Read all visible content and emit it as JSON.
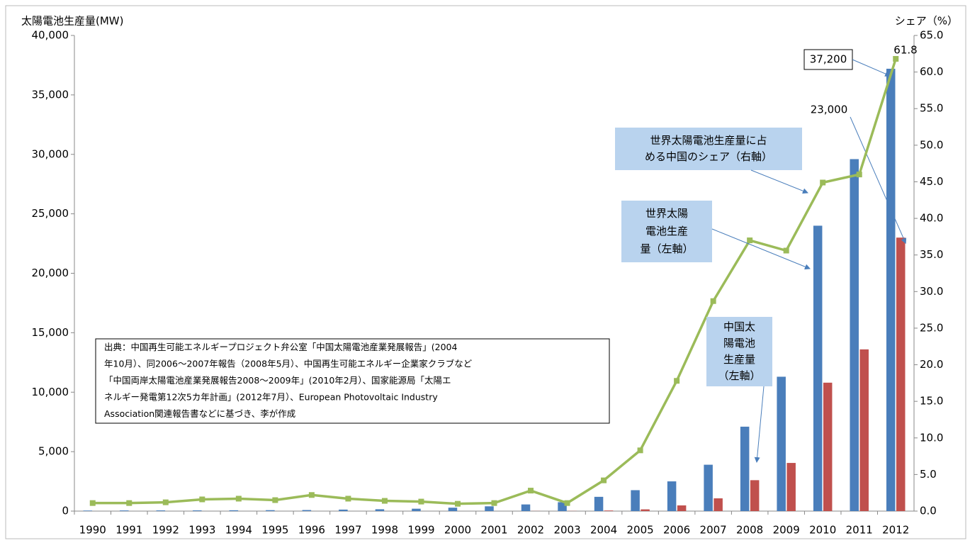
{
  "chart_data": {
    "type": "bar-line",
    "y_label": "太陽電池生産量(MW)",
    "y2_label": "シェア（%）",
    "categories": [
      "1990",
      "1991",
      "1992",
      "1993",
      "1994",
      "1995",
      "1996",
      "1997",
      "1998",
      "1999",
      "2000",
      "2001",
      "2002",
      "2003",
      "2004",
      "2005",
      "2006",
      "2007",
      "2008",
      "2009",
      "2010",
      "2011",
      "2012"
    ],
    "series": [
      {
        "type": "bar",
        "color": "#4a7ebb",
        "values": [
          46,
          55,
          58,
          60,
          69,
          78,
          89,
          126,
          155,
          201,
          288,
          401,
          560,
          750,
          1200,
          1760,
          2500,
          3900,
          7100,
          11300,
          24000,
          29600,
          37200
        ],
        "value_labels": [
          null,
          null,
          null,
          null,
          null,
          null,
          null,
          null,
          null,
          null,
          null,
          null,
          null,
          null,
          null,
          null,
          null,
          null,
          null,
          null,
          null,
          null,
          "37,200"
        ]
      },
      {
        "type": "bar",
        "color": "#c0504d",
        "values": [
          0,
          0,
          0,
          0,
          0,
          0,
          0,
          0,
          0,
          0,
          0,
          0,
          10,
          12,
          50,
          146,
          480,
          1073,
          2600,
          4050,
          10800,
          13600,
          23000
        ],
        "value_labels": [
          null,
          null,
          null,
          null,
          null,
          null,
          null,
          null,
          null,
          null,
          null,
          null,
          null,
          null,
          null,
          null,
          null,
          null,
          null,
          null,
          null,
          null,
          "23,000"
        ]
      },
      {
        "type": "line",
        "axis": "y2",
        "color": "#9bbb59",
        "values": [
          1.1,
          1.1,
          1.2,
          1.6,
          1.7,
          1.5,
          2.2,
          1.7,
          1.4,
          1.3,
          1.0,
          1.1,
          2.8,
          1.1,
          4.2,
          8.3,
          17.8,
          28.7,
          37.0,
          35.6,
          44.9,
          46.0,
          61.8
        ],
        "value_labels": [
          null,
          null,
          null,
          null,
          null,
          null,
          null,
          null,
          null,
          null,
          null,
          null,
          null,
          null,
          null,
          null,
          null,
          null,
          null,
          null,
          null,
          null,
          "61.8"
        ]
      }
    ],
    "ylim": [
      0,
      40000
    ],
    "yticks": [
      0,
      {
        "value": 5000,
        "label": "5,000"
      },
      {
        "value": 10000,
        "label": "10,000"
      },
      {
        "value": 15000,
        "label": "15,000"
      },
      {
        "value": 20000,
        "label": "20,000"
      },
      {
        "value": 25000,
        "label": "25,000"
      },
      {
        "value": 30000,
        "label": "30,000"
      },
      {
        "value": 35000,
        "label": "35,000"
      },
      {
        "value": 40000,
        "label": "40,000"
      }
    ],
    "y2lim": [
      0,
      65
    ],
    "y2ticks": [
      {
        "value": 0,
        "label": "0.0"
      },
      {
        "value": 5,
        "label": "5.0"
      },
      {
        "value": 10,
        "label": "10.0"
      },
      {
        "value": 15,
        "label": "15.0"
      },
      {
        "value": 20,
        "label": "20.0"
      },
      {
        "value": 25,
        "label": "25.0"
      },
      {
        "value": 30,
        "label": "30.0"
      },
      {
        "value": 35,
        "label": "35.0"
      },
      {
        "value": 40,
        "label": "40.0"
      },
      {
        "value": 45,
        "label": "45.0"
      },
      {
        "value": 50,
        "label": "50.0"
      },
      {
        "value": 55,
        "label": "55.0"
      },
      {
        "value": 60,
        "label": "60.0"
      },
      {
        "value": 65,
        "label": "65.0"
      }
    ],
    "grid": false,
    "annotations": [
      {
        "lines": [
          "世界太陽電池生産量に占",
          "める中国のシェア（右軸）"
        ]
      },
      {
        "lines": [
          "世界太陽",
          "電池生産",
          "量（左軸）"
        ]
      },
      {
        "lines": [
          "中国太",
          "陽電池",
          "生産量",
          "（左軸）"
        ]
      },
      {
        "lines": [
          "出典：中国再生可能エネルギープロジェクト弁公室「中国太陽電池産業発展報告」(2004",
          "年10月）、同2006～2007年報告（2008年5月）、中国再生可能エネルギー企業家クラブなど",
          "「中国両岸太陽電池産業発展報告2008～2009年」(2010年2月）、国家能源局「太陽エ",
          "ネルギー発電第12次5カ年計画」(2012年7月）、European Photovoltaic Industry",
          "Association関連報告書などに基づき、李が作成"
        ]
      }
    ]
  }
}
